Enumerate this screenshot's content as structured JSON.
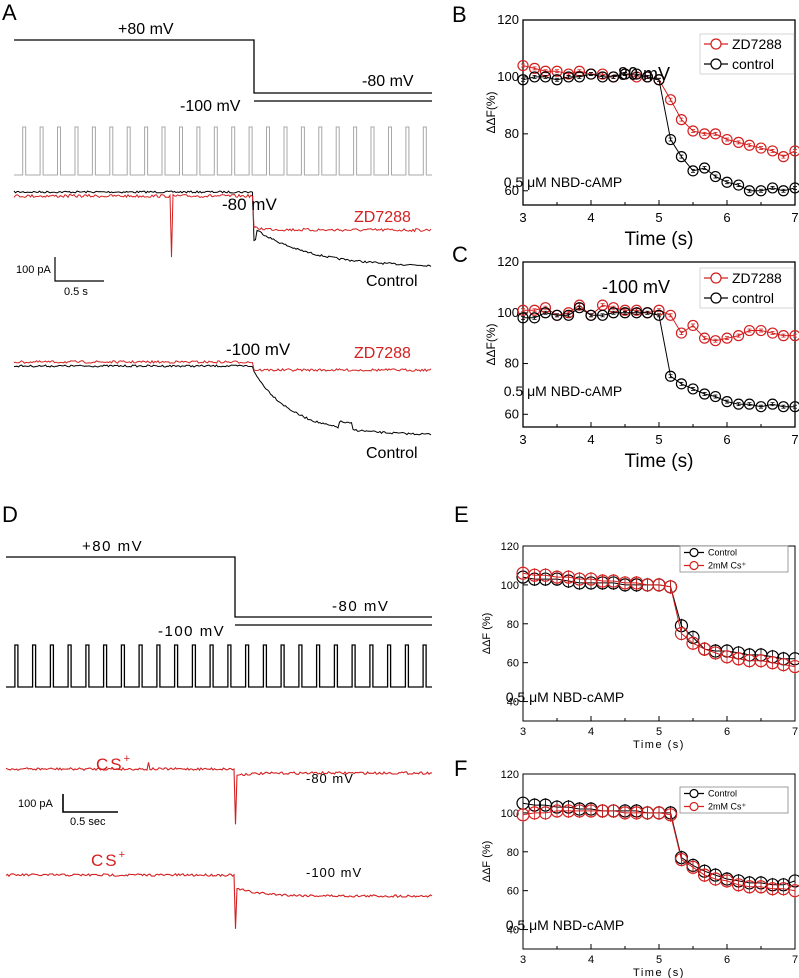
{
  "panels": {
    "A": {
      "letter": "A",
      "protocol": {
        "step1": "+80 mV",
        "step2_low": "-100 mV",
        "step2_high": "-80 mV"
      },
      "traces": {
        "top_voltage": "-80 mV",
        "top_zd": "ZD7288",
        "top_control": "Control",
        "bottom_voltage": "-100 mV",
        "bottom_zd": "ZD7288",
        "bottom_control": "Control"
      },
      "scale": {
        "current": "100 pA",
        "time": "0.5 s"
      }
    },
    "D": {
      "letter": "D",
      "protocol": {
        "step1": "+80 mV",
        "step2_low": "-100 mV",
        "step2_high": "-80 mV"
      },
      "traces": {
        "top_label": "CS",
        "top_sup": "+",
        "top_voltage": "-80 mV",
        "bottom_label": "CS",
        "bottom_sup": "+",
        "bottom_voltage": "-100 mV"
      },
      "scale": {
        "current": "100 pA",
        "time": "0.5 sec"
      }
    }
  },
  "colors": {
    "red": "#d42020",
    "black": "#000000",
    "gray": "#a8a8a8"
  },
  "chart_data": [
    {
      "id": "B",
      "letter": "B",
      "type": "scatter",
      "annotation": "-80 mV",
      "inset": "0.5 μM NBD-cAMP",
      "xlabel": "Time (s)",
      "ylabel": "ΔΔF(%)",
      "xlim": [
        3,
        7
      ],
      "ylim": [
        55,
        120
      ],
      "xticks": [
        3,
        4,
        5,
        6,
        7
      ],
      "yticks": [
        60,
        80,
        100,
        120
      ],
      "legend": "top-right",
      "series": [
        {
          "name": "ZD7288",
          "color": "#d42020",
          "x": [
            3.0,
            3.17,
            3.33,
            3.5,
            3.67,
            3.83,
            4.0,
            4.17,
            4.33,
            4.5,
            4.67,
            4.83,
            5.0,
            5.17,
            5.33,
            5.5,
            5.67,
            5.83,
            6.0,
            6.17,
            6.33,
            6.5,
            6.67,
            6.83,
            7.0
          ],
          "values": [
            104,
            103,
            102,
            102,
            101,
            102,
            101,
            101,
            100,
            101,
            100,
            100,
            99,
            92,
            85,
            81,
            80,
            80,
            78,
            77,
            76,
            75,
            74,
            72,
            74
          ]
        },
        {
          "name": "control",
          "color": "#000000",
          "x": [
            3.0,
            3.17,
            3.33,
            3.5,
            3.67,
            3.83,
            4.0,
            4.17,
            4.33,
            4.5,
            4.67,
            4.83,
            5.0,
            5.17,
            5.33,
            5.5,
            5.67,
            5.83,
            6.0,
            6.17,
            6.33,
            6.5,
            6.67,
            6.83,
            7.0
          ],
          "values": [
            99,
            100,
            100,
            99,
            100,
            100,
            101,
            100,
            100,
            101,
            101,
            100,
            99,
            78,
            72,
            67,
            68,
            65,
            63,
            62,
            60,
            60,
            61,
            60,
            61
          ]
        }
      ]
    },
    {
      "id": "C",
      "letter": "C",
      "type": "scatter",
      "annotation": "-100 mV",
      "inset": "0.5 μM NBD-cAMP",
      "xlabel": "Time (s)",
      "ylabel": "ΔΔF(%)",
      "xlim": [
        3,
        7
      ],
      "ylim": [
        55,
        120
      ],
      "xticks": [
        3,
        4,
        5,
        6,
        7
      ],
      "yticks": [
        60,
        80,
        100,
        120
      ],
      "legend": "top-right",
      "series": [
        {
          "name": "ZD7288",
          "color": "#d42020",
          "x": [
            3.0,
            3.17,
            3.33,
            3.5,
            3.67,
            3.83,
            4.0,
            4.17,
            4.33,
            4.5,
            4.67,
            4.83,
            5.0,
            5.17,
            5.33,
            5.5,
            5.67,
            5.83,
            6.0,
            6.17,
            6.33,
            6.5,
            6.67,
            6.83,
            7.0
          ],
          "values": [
            101,
            101,
            102,
            99,
            100,
            103,
            99,
            103,
            102,
            101,
            101,
            100,
            101,
            99,
            92,
            95,
            90,
            89,
            90,
            91,
            93,
            93,
            92,
            91,
            91
          ]
        },
        {
          "name": "control",
          "color": "#000000",
          "x": [
            3.0,
            3.17,
            3.33,
            3.5,
            3.67,
            3.83,
            4.0,
            4.17,
            4.33,
            4.5,
            4.67,
            4.83,
            5.0,
            5.17,
            5.33,
            5.5,
            5.67,
            5.83,
            6.0,
            6.17,
            6.33,
            6.5,
            6.67,
            6.83,
            7.0
          ],
          "values": [
            98,
            98,
            100,
            99,
            99,
            102,
            99,
            99,
            100,
            100,
            100,
            100,
            99,
            75,
            72,
            70,
            68,
            67,
            65,
            64,
            64,
            63,
            64,
            63,
            63
          ]
        }
      ]
    },
    {
      "id": "E",
      "letter": "E",
      "type": "scatter",
      "inset": "0.5 μM NBD-cAMP",
      "xlabel": "Time (s)",
      "ylabel": "ΔΔF (%)",
      "xlim": [
        3,
        7
      ],
      "ylim": [
        30,
        120
      ],
      "xticks": [
        3,
        4,
        5,
        6,
        7
      ],
      "yticks": [
        40,
        60,
        80,
        100,
        120
      ],
      "legend": "top-right",
      "series": [
        {
          "name": "Control",
          "color": "#000000",
          "x": [
            3.0,
            3.17,
            3.33,
            3.5,
            3.67,
            3.83,
            4.0,
            4.17,
            4.33,
            4.5,
            4.67,
            4.83,
            5.0,
            5.17,
            5.33,
            5.5,
            5.67,
            5.83,
            6.0,
            6.17,
            6.33,
            6.5,
            6.67,
            6.83,
            7.0
          ],
          "values": [
            104,
            103,
            103,
            103,
            102,
            101,
            101,
            101,
            101,
            100,
            100,
            100,
            100,
            99,
            79,
            73,
            67,
            66,
            66,
            65,
            64,
            64,
            63,
            62,
            62
          ]
        },
        {
          "name": "2mM Cs⁺",
          "color": "#d42020",
          "x": [
            3.0,
            3.17,
            3.33,
            3.5,
            3.67,
            3.83,
            4.0,
            4.17,
            4.33,
            4.5,
            4.67,
            4.83,
            5.0,
            5.17,
            5.33,
            5.5,
            5.67,
            5.83,
            6.0,
            6.17,
            6.33,
            6.5,
            6.67,
            6.83,
            7.0
          ],
          "values": [
            106,
            105,
            105,
            104,
            104,
            103,
            103,
            102,
            102,
            101,
            101,
            100,
            100,
            99,
            75,
            70,
            67,
            65,
            63,
            62,
            61,
            61,
            60,
            59,
            58
          ]
        }
      ]
    },
    {
      "id": "F",
      "letter": "F",
      "type": "scatter",
      "inset": "0.5 μM NBD-cAMP",
      "xlabel": "Time (s)",
      "ylabel": "ΔΔF (%)",
      "xlim": [
        3,
        7
      ],
      "ylim": [
        30,
        120
      ],
      "xticks": [
        3,
        4,
        5,
        6,
        7
      ],
      "yticks": [
        40,
        60,
        80,
        100,
        120
      ],
      "legend": "top-right",
      "series": [
        {
          "name": "Control",
          "color": "#000000",
          "x": [
            3.0,
            3.17,
            3.33,
            3.5,
            3.67,
            3.83,
            4.0,
            4.17,
            4.33,
            4.5,
            4.67,
            4.83,
            5.0,
            5.17,
            5.33,
            5.5,
            5.67,
            5.83,
            6.0,
            6.17,
            6.33,
            6.5,
            6.67,
            6.83,
            7.0
          ],
          "values": [
            105,
            104,
            104,
            103,
            103,
            102,
            102,
            101,
            101,
            101,
            101,
            100,
            100,
            100,
            77,
            73,
            70,
            68,
            66,
            65,
            64,
            64,
            63,
            63,
            65
          ]
        },
        {
          "name": "2mM Cs⁺",
          "color": "#d42020",
          "x": [
            3.0,
            3.17,
            3.33,
            3.5,
            3.67,
            3.83,
            4.0,
            4.17,
            4.33,
            4.5,
            4.67,
            4.83,
            5.0,
            5.17,
            5.33,
            5.5,
            5.67,
            5.83,
            6.0,
            6.17,
            6.33,
            6.5,
            6.67,
            6.83,
            7.0
          ],
          "values": [
            99,
            100,
            100,
            101,
            101,
            101,
            101,
            101,
            101,
            100,
            100,
            100,
            100,
            99,
            76,
            72,
            68,
            66,
            65,
            63,
            62,
            62,
            61,
            61,
            60
          ]
        }
      ]
    }
  ]
}
